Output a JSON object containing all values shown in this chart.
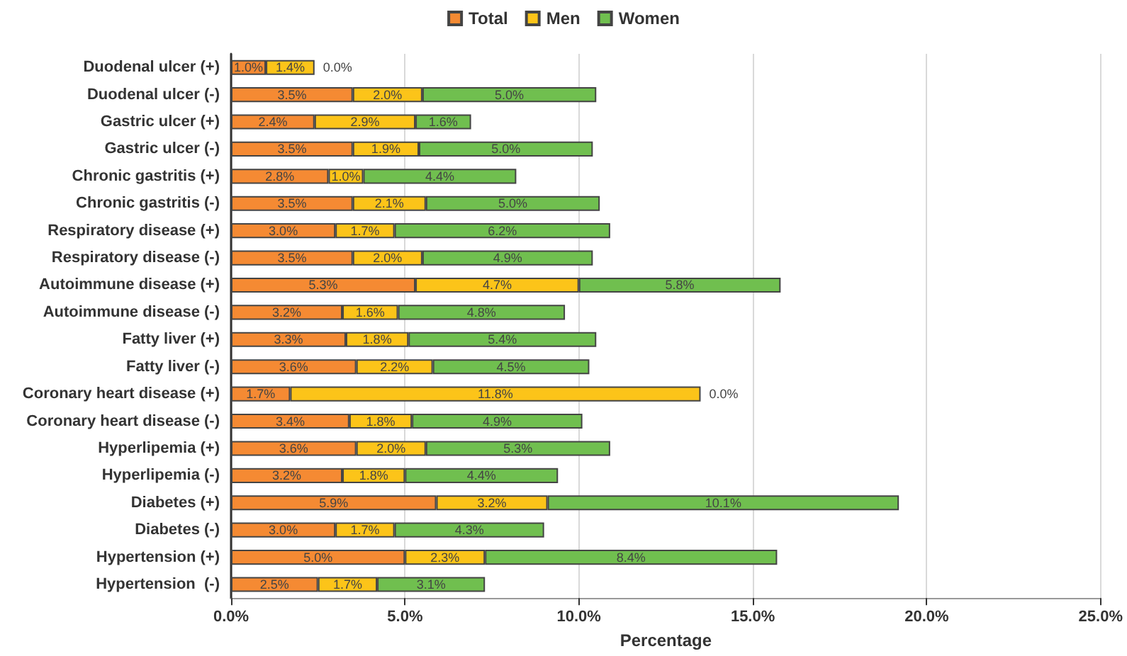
{
  "chart_data": {
    "type": "bar",
    "orientation": "horizontal",
    "stacked": true,
    "xlabel": "Percentage",
    "categories": [
      "Duodenal ulcer (+)",
      "Duodenal ulcer (-)",
      "Gastric ulcer (+)",
      "Gastric ulcer (-)",
      "Chronic gastritis (+)",
      "Chronic gastritis (-)",
      "Respiratory disease (+)",
      "Respiratory disease (-)",
      "Autoimmune disease (+)",
      "Autoimmune disease (-)",
      "Fatty liver (+)",
      "Fatty liver (-)",
      "Coronary heart disease (+)",
      "Coronary heart disease (-)",
      "Hyperlipemia (+)",
      "Hyperlipemia (-)",
      "Diabetes (+)",
      "Diabetes (-)",
      "Hypertension (+)",
      "Hypertension  (-)"
    ],
    "series": [
      {
        "name": "Total",
        "color": "#f58a33",
        "values": [
          1.0,
          3.5,
          2.4,
          3.5,
          2.8,
          3.5,
          3.0,
          3.5,
          5.3,
          3.2,
          3.3,
          3.6,
          1.7,
          3.4,
          3.6,
          3.2,
          5.9,
          3.0,
          5.0,
          2.5
        ],
        "value_labels": [
          "1.0%",
          "3.5%",
          "2.4%",
          "3.5%",
          "2.8%",
          "3.5%",
          "3.0%",
          "3.5%",
          "5.3%",
          "3.2%",
          "3.3%",
          "3.6%",
          "1.7%",
          "3.4%",
          "3.6%",
          "3.2%",
          "5.9%",
          "3.0%",
          "5.0%",
          "2.5%"
        ]
      },
      {
        "name": "Men",
        "color": "#fcc419",
        "values": [
          1.4,
          2.0,
          2.9,
          1.9,
          1.0,
          2.1,
          1.7,
          2.0,
          4.7,
          1.6,
          1.8,
          2.2,
          11.8,
          1.8,
          2.0,
          1.8,
          3.2,
          1.7,
          2.3,
          1.7
        ],
        "value_labels": [
          "1.4%",
          "2.0%",
          "2.9%",
          "1.9%",
          "1.0%",
          "2.1%",
          "1.7%",
          "2.0%",
          "4.7%",
          "1.6%",
          "1.8%",
          "2.2%",
          "11.8%",
          "1.8%",
          "2.0%",
          "1.8%",
          "3.2%",
          "1.7%",
          "2.3%",
          "1.7%"
        ]
      },
      {
        "name": "Women",
        "color": "#70bf4f",
        "values": [
          0.0,
          5.0,
          1.6,
          5.0,
          4.4,
          5.0,
          6.2,
          4.9,
          5.8,
          4.8,
          5.4,
          4.5,
          0.0,
          4.9,
          5.3,
          4.4,
          10.1,
          4.3,
          8.4,
          3.1
        ],
        "value_labels": [
          "0.0%",
          "5.0%",
          "1.6%",
          "5.0%",
          "4.4%",
          "5.0%",
          "6.2%",
          "4.9%",
          "5.8%",
          "4.8%",
          "5.4%",
          "4.5%",
          "0.0%",
          "4.9%",
          "5.3%",
          "4.4%",
          "10.1%",
          "4.3%",
          "8.4%",
          "3.1%"
        ]
      }
    ],
    "xlim": [
      0,
      25
    ],
    "xticks": [
      {
        "value": 0,
        "label": "0.0%"
      },
      {
        "value": 5,
        "label": "5.0%"
      },
      {
        "value": 10,
        "label": "10.0%"
      },
      {
        "value": 15,
        "label": "15.0%"
      },
      {
        "value": 20,
        "label": "20.0%"
      },
      {
        "value": 25,
        "label": "25.0%"
      }
    ],
    "grid": "x",
    "legend": "top"
  }
}
